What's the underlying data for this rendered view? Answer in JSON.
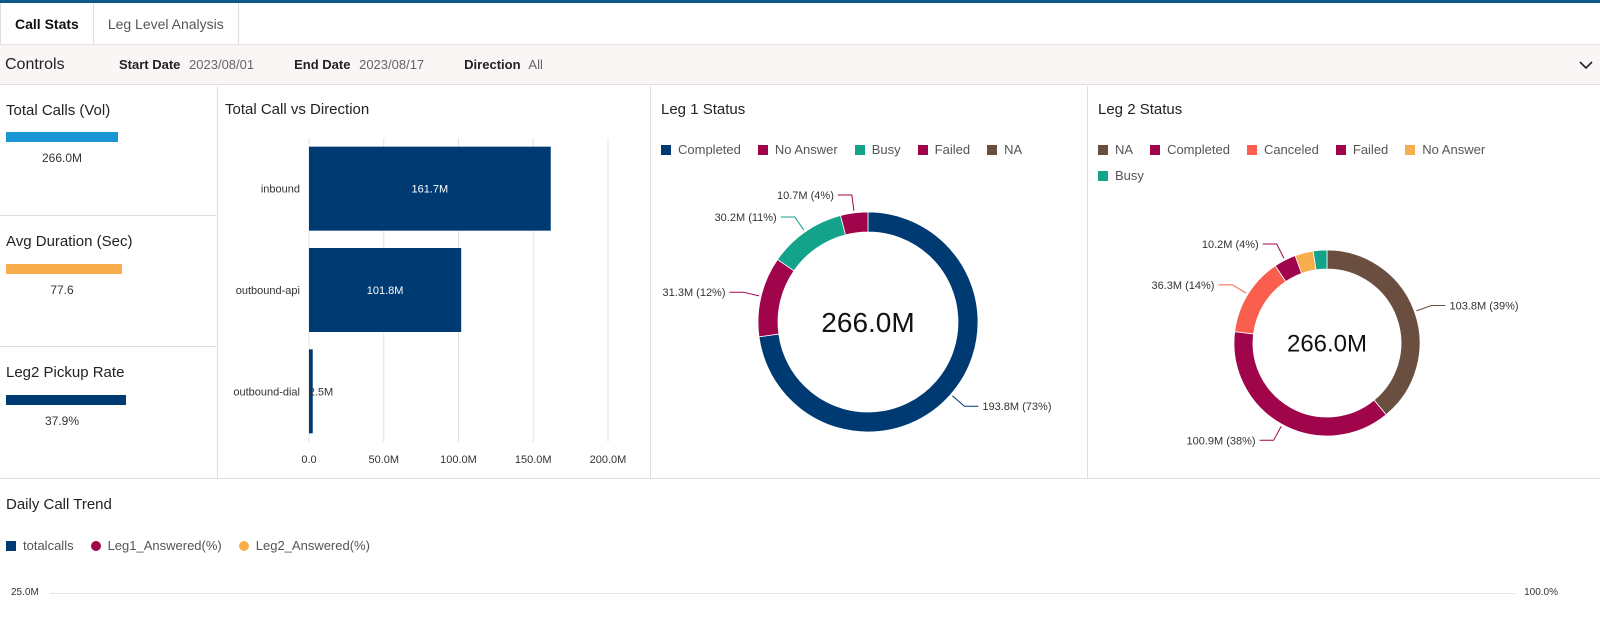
{
  "tabs": [
    {
      "label": "Call Stats"
    },
    {
      "label": "Leg Level Analysis"
    }
  ],
  "controls": {
    "title": "Controls",
    "start_date_label": "Start Date",
    "start_date_value": "2023/08/01",
    "end_date_label": "End Date",
    "end_date_value": "2023/08/17",
    "direction_label": "Direction",
    "direction_value": "All"
  },
  "kpis": [
    {
      "title": "Total Calls (Vol)",
      "value": "266.0M",
      "color": "#1a96d4",
      "fill": 0.93
    },
    {
      "title": "Avg Duration (Sec)",
      "value": "77.6",
      "color": "#f8ae4c",
      "fill": 0.97
    },
    {
      "title": "Leg2 Pickup Rate",
      "value": "37.9%",
      "color": "#003a73",
      "fill": 1.0
    }
  ],
  "direction_chart": {
    "title": "Total Call vs Direction",
    "chart_data": {
      "type": "bar",
      "orientation": "horizontal",
      "categories": [
        "inbound",
        "outbound-api",
        "outbound-dial"
      ],
      "values": [
        161.7,
        101.8,
        2.5
      ],
      "labels": [
        "161.7M",
        "101.8M",
        "2.5M"
      ],
      "xlim": [
        0,
        200
      ],
      "ticks": [
        0,
        50,
        100,
        150,
        200
      ],
      "tick_labels": [
        "0.0",
        "50.0M",
        "100.0M",
        "150.0M",
        "200.0M"
      ],
      "color": "#003a73"
    }
  },
  "leg1": {
    "title": "Leg 1 Status",
    "center": "266.0M",
    "legend": [
      {
        "label": "Completed",
        "color": "#003a73"
      },
      {
        "label": "No Answer",
        "color": "#a0044b"
      },
      {
        "label": "Busy",
        "color": "#13a38b"
      },
      {
        "label": "Failed",
        "color": "#a0044b"
      },
      {
        "label": "NA",
        "color": "#6a4e3f"
      }
    ],
    "chart_data": {
      "type": "pie",
      "donut": true,
      "slices": [
        {
          "name": "Completed",
          "value": 193.8,
          "label": "193.8M (73%)",
          "color": "#003a73"
        },
        {
          "name": "No Answer",
          "value": 31.3,
          "label": "31.3M (12%)",
          "color": "#a0044b"
        },
        {
          "name": "Busy",
          "value": 30.2,
          "label": "30.2M (11%)",
          "color": "#13a38b"
        },
        {
          "name": "Failed",
          "value": 10.7,
          "label": "10.7M (4%)",
          "color": "#a0044b"
        }
      ]
    }
  },
  "leg2": {
    "title": "Leg 2 Status",
    "center": "266.0M",
    "legend": [
      {
        "label": "NA",
        "color": "#6a4e3f"
      },
      {
        "label": "Completed",
        "color": "#a0044b"
      },
      {
        "label": "Canceled",
        "color": "#fa5e4e"
      },
      {
        "label": "Failed",
        "color": "#a0044b"
      },
      {
        "label": "No Answer",
        "color": "#f8ae4c"
      },
      {
        "label": "Busy",
        "color": "#13a38b"
      }
    ],
    "chart_data": {
      "type": "pie",
      "donut": true,
      "slices": [
        {
          "name": "NA",
          "value": 103.8,
          "label": "103.8M (39%)",
          "color": "#6a4e3f"
        },
        {
          "name": "Completed",
          "value": 100.9,
          "label": "100.9M (38%)",
          "color": "#a0044b"
        },
        {
          "name": "Canceled",
          "value": 36.3,
          "label": "36.3M (14%)",
          "color": "#fa5e4e"
        },
        {
          "name": "Failed",
          "value": 10.2,
          "label": "10.2M (4%)",
          "color": "#a0044b"
        },
        {
          "name": "No Answer",
          "value": 8.5,
          "label": "",
          "color": "#f8ae4c"
        },
        {
          "name": "Busy",
          "value": 6.3,
          "label": "",
          "color": "#13a38b"
        }
      ]
    }
  },
  "trend": {
    "title": "Daily Call Trend",
    "legend": [
      {
        "label": "totalcalls",
        "color": "#003a73",
        "shape": "square"
      },
      {
        "label": "Leg1_Answered(%)",
        "color": "#a0044b",
        "shape": "circle"
      },
      {
        "label": "Leg2_Answered(%)",
        "color": "#f8ae4c",
        "shape": "circle"
      }
    ],
    "left_axis_top": "25.0M",
    "right_axis_top": "100.0%"
  }
}
